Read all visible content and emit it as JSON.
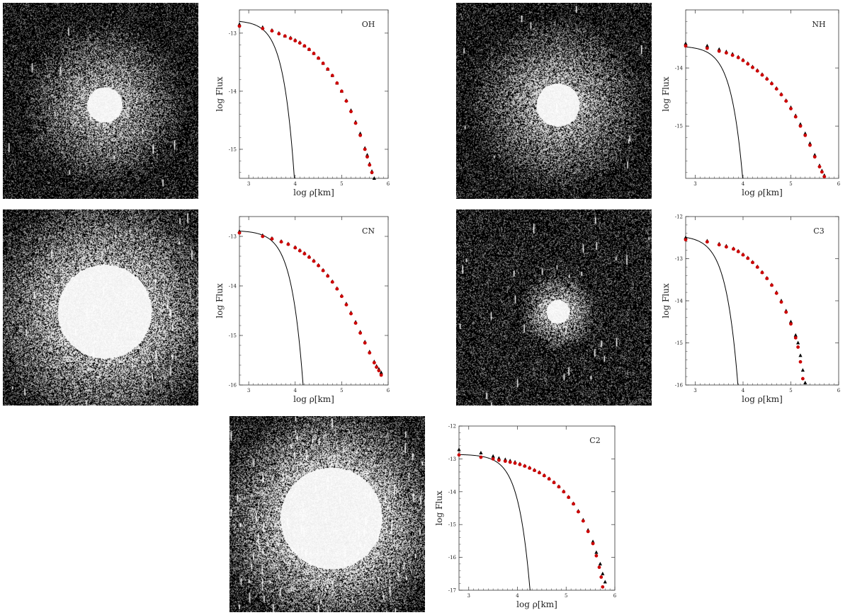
{
  "figure": {
    "xlabel": "log ρ[km]",
    "ylabel": "log Flux"
  },
  "images": [
    {
      "name": "oh",
      "core_radius": 0.09,
      "halo_radius": 0.42,
      "density": 0.45,
      "streaks": 0.02
    },
    {
      "name": "nh",
      "core_radius": 0.11,
      "halo_radius": 0.45,
      "density": 0.45,
      "streaks": 0.02
    },
    {
      "name": "cn",
      "core_radius": 0.24,
      "halo_radius": 0.62,
      "density": 0.5,
      "streaks": 0.06
    },
    {
      "name": "c3",
      "core_radius": 0.06,
      "halo_radius": 0.2,
      "density": 0.5,
      "streaks": 0.05
    },
    {
      "name": "c2",
      "core_radius": 0.26,
      "halo_radius": 0.58,
      "density": 0.55,
      "streaks": 0.18
    }
  ],
  "chart_data": [
    {
      "type": "scatter",
      "label": "OH",
      "xlim": [
        2.8,
        6
      ],
      "ylim": [
        -15.5,
        -12.6
      ],
      "xticks": [
        3,
        4,
        5,
        6
      ],
      "yticks": [
        -13,
        -14,
        -15
      ],
      "model": {
        "a": -12.78,
        "b": 0.044,
        "c": 4.2
      },
      "series": [
        {
          "marker": "triangle",
          "color": "#000000",
          "x": [
            2.8,
            3.3,
            3.5,
            3.65,
            3.78,
            3.9,
            4.0,
            4.1,
            4.2,
            4.3,
            4.4,
            4.5,
            4.6,
            4.7,
            4.8,
            4.9,
            5.0,
            5.1,
            5.2,
            5.3,
            5.4,
            5.5,
            5.55,
            5.6,
            5.65,
            5.7
          ],
          "y": [
            -12.85,
            -12.9,
            -12.95,
            -13.0,
            -13.05,
            -13.08,
            -13.12,
            -13.16,
            -13.22,
            -13.28,
            -13.35,
            -13.43,
            -13.52,
            -13.62,
            -13.73,
            -13.86,
            -14.0,
            -14.16,
            -14.33,
            -14.53,
            -14.73,
            -14.98,
            -15.1,
            -15.25,
            -15.38,
            -15.5
          ]
        },
        {
          "marker": "circle",
          "color": "#cc0000",
          "x": [
            2.8,
            3.3,
            3.5,
            3.65,
            3.78,
            3.9,
            4.0,
            4.1,
            4.2,
            4.3,
            4.4,
            4.5,
            4.6,
            4.7,
            4.8,
            4.9,
            5.0,
            5.1,
            5.2,
            5.3,
            5.4,
            5.5,
            5.55,
            5.6,
            5.65,
            5.7
          ],
          "y": [
            -12.88,
            -12.92,
            -12.96,
            -13.01,
            -13.05,
            -13.09,
            -13.13,
            -13.17,
            -13.22,
            -13.28,
            -13.35,
            -13.43,
            -13.52,
            -13.62,
            -13.73,
            -13.86,
            -14.0,
            -14.17,
            -14.35,
            -14.55,
            -14.76,
            -15.0,
            -15.13,
            -15.27,
            -15.4,
            -15.52
          ]
        }
      ]
    },
    {
      "type": "scatter",
      "label": "NH",
      "xlim": [
        2.8,
        6
      ],
      "ylim": [
        -15.9,
        -13.0
      ],
      "xticks": [
        3,
        4,
        5,
        6
      ],
      "yticks": [
        -14,
        -15
      ],
      "model": {
        "a": -13.62,
        "b": 0.039,
        "c": 4.1
      },
      "series": [
        {
          "marker": "triangle",
          "color": "#000000",
          "x": [
            2.8,
            3.25,
            3.5,
            3.65,
            3.78,
            3.9,
            4.0,
            4.1,
            4.2,
            4.3,
            4.4,
            4.5,
            4.6,
            4.7,
            4.8,
            4.9,
            5.0,
            5.1,
            5.2,
            5.3,
            5.4,
            5.5,
            5.6,
            5.65,
            5.7
          ],
          "y": [
            -13.58,
            -13.62,
            -13.68,
            -13.72,
            -13.76,
            -13.81,
            -13.86,
            -13.92,
            -13.98,
            -14.04,
            -14.11,
            -14.18,
            -14.26,
            -14.35,
            -14.45,
            -14.56,
            -14.68,
            -14.82,
            -14.97,
            -15.13,
            -15.3,
            -15.5,
            -15.68,
            -15.77,
            -15.85
          ]
        },
        {
          "marker": "circle",
          "color": "#cc0000",
          "x": [
            2.8,
            3.25,
            3.5,
            3.65,
            3.78,
            3.9,
            4.0,
            4.1,
            4.2,
            4.3,
            4.4,
            4.5,
            4.6,
            4.7,
            4.8,
            4.9,
            5.0,
            5.1,
            5.2,
            5.3,
            5.4,
            5.5,
            5.6,
            5.65,
            5.7
          ],
          "y": [
            -13.62,
            -13.66,
            -13.71,
            -13.74,
            -13.78,
            -13.82,
            -13.87,
            -13.93,
            -13.99,
            -14.05,
            -14.12,
            -14.19,
            -14.27,
            -14.36,
            -14.46,
            -14.57,
            -14.7,
            -14.84,
            -15.0,
            -15.16,
            -15.33,
            -15.53,
            -15.7,
            -15.79,
            -15.87
          ]
        }
      ]
    },
    {
      "type": "scatter",
      "label": "CN",
      "xlim": [
        2.8,
        6
      ],
      "ylim": [
        -16.0,
        -12.6
      ],
      "xticks": [
        3,
        4,
        5,
        6
      ],
      "yticks": [
        -13,
        -14,
        -15,
        -16
      ],
      "model": {
        "a": -12.88,
        "b": 0.029,
        "c": 4.0
      },
      "series": [
        {
          "marker": "triangle",
          "color": "#000000",
          "x": [
            2.8,
            3.3,
            3.5,
            3.7,
            3.85,
            4.0,
            4.1,
            4.2,
            4.3,
            4.4,
            4.5,
            4.6,
            4.7,
            4.8,
            4.9,
            5.0,
            5.1,
            5.2,
            5.3,
            5.4,
            5.5,
            5.6,
            5.7,
            5.75,
            5.8,
            5.85
          ],
          "y": [
            -12.9,
            -12.98,
            -13.04,
            -13.1,
            -13.15,
            -13.22,
            -13.28,
            -13.34,
            -13.41,
            -13.49,
            -13.58,
            -13.68,
            -13.79,
            -13.91,
            -14.05,
            -14.2,
            -14.36,
            -14.54,
            -14.73,
            -14.93,
            -15.13,
            -15.33,
            -15.53,
            -15.62,
            -15.68,
            -15.75
          ]
        },
        {
          "marker": "circle",
          "color": "#cc0000",
          "x": [
            2.8,
            3.3,
            3.5,
            3.7,
            3.85,
            4.0,
            4.1,
            4.2,
            4.3,
            4.4,
            4.5,
            4.6,
            4.7,
            4.8,
            4.9,
            5.0,
            5.1,
            5.2,
            5.3,
            5.4,
            5.5,
            5.6,
            5.7,
            5.75,
            5.8,
            5.85
          ],
          "y": [
            -12.93,
            -13.0,
            -13.05,
            -13.11,
            -13.16,
            -13.23,
            -13.29,
            -13.35,
            -13.42,
            -13.5,
            -13.59,
            -13.69,
            -13.8,
            -13.92,
            -14.06,
            -14.21,
            -14.38,
            -14.56,
            -14.75,
            -14.95,
            -15.15,
            -15.35,
            -15.55,
            -15.64,
            -15.71,
            -15.8
          ]
        }
      ]
    },
    {
      "type": "scatter",
      "label": "C3",
      "xlim": [
        2.8,
        6
      ],
      "ylim": [
        -16.0,
        -12.0
      ],
      "xticks": [
        3,
        4,
        5,
        6
      ],
      "yticks": [
        -12,
        -13,
        -14,
        -15,
        -16
      ],
      "model": {
        "a": -12.45,
        "b": 0.1,
        "c": 4.0
      },
      "series": [
        {
          "marker": "triangle",
          "color": "#000000",
          "x": [
            2.8,
            3.25,
            3.5,
            3.65,
            3.8,
            3.9,
            4.0,
            4.1,
            4.2,
            4.3,
            4.4,
            4.5,
            4.6,
            4.7,
            4.8,
            4.9,
            5.0,
            5.1,
            5.15,
            5.2,
            5.25,
            5.3
          ],
          "y": [
            -12.5,
            -12.58,
            -12.65,
            -12.7,
            -12.76,
            -12.82,
            -12.9,
            -12.98,
            -13.08,
            -13.19,
            -13.32,
            -13.46,
            -13.62,
            -13.8,
            -14.0,
            -14.24,
            -14.5,
            -14.82,
            -15.0,
            -15.3,
            -15.65,
            -15.95
          ]
        },
        {
          "marker": "circle",
          "color": "#cc0000",
          "x": [
            2.8,
            3.25,
            3.5,
            3.65,
            3.8,
            3.9,
            4.0,
            4.1,
            4.2,
            4.3,
            4.4,
            4.5,
            4.6,
            4.7,
            4.8,
            4.9,
            5.0,
            5.1,
            5.15,
            5.2,
            5.25
          ],
          "y": [
            -12.55,
            -12.6,
            -12.67,
            -12.72,
            -12.77,
            -12.83,
            -12.91,
            -12.99,
            -13.09,
            -13.2,
            -13.33,
            -13.47,
            -13.63,
            -13.82,
            -14.03,
            -14.27,
            -14.55,
            -14.88,
            -15.1,
            -15.45,
            -15.85
          ]
        }
      ]
    },
    {
      "type": "scatter",
      "label": "C2",
      "xlim": [
        2.8,
        6
      ],
      "ylim": [
        -17.0,
        -12.0
      ],
      "xticks": [
        3,
        4,
        5,
        6
      ],
      "yticks": [
        -12,
        -13,
        -14,
        -15,
        -16,
        -17
      ],
      "model": {
        "a": -12.86,
        "b": 0.021,
        "c": 4.2
      },
      "series": [
        {
          "marker": "triangle",
          "color": "#000000",
          "x": [
            2.8,
            3.25,
            3.5,
            3.62,
            3.75,
            3.85,
            3.95,
            4.05,
            4.15,
            4.25,
            4.35,
            4.45,
            4.55,
            4.65,
            4.75,
            4.85,
            4.95,
            5.05,
            5.15,
            5.25,
            5.35,
            5.45,
            5.55,
            5.62,
            5.7,
            5.75,
            5.8
          ],
          "y": [
            -12.72,
            -12.82,
            -12.92,
            -12.98,
            -13.02,
            -13.06,
            -13.1,
            -13.15,
            -13.21,
            -13.27,
            -13.34,
            -13.41,
            -13.5,
            -13.6,
            -13.71,
            -13.84,
            -13.99,
            -14.16,
            -14.36,
            -14.59,
            -14.86,
            -15.17,
            -15.52,
            -15.85,
            -16.2,
            -16.5,
            -16.75
          ]
        },
        {
          "marker": "circle",
          "color": "#cc0000",
          "x": [
            2.8,
            3.25,
            3.5,
            3.62,
            3.75,
            3.85,
            3.95,
            4.05,
            4.15,
            4.25,
            4.35,
            4.45,
            4.55,
            4.65,
            4.75,
            4.85,
            4.95,
            5.05,
            5.15,
            5.25,
            5.35,
            5.45,
            5.55,
            5.62,
            5.68,
            5.72,
            5.75
          ],
          "y": [
            -12.88,
            -12.95,
            -13.0,
            -13.04,
            -13.07,
            -13.1,
            -13.13,
            -13.17,
            -13.22,
            -13.28,
            -13.35,
            -13.42,
            -13.51,
            -13.61,
            -13.72,
            -13.85,
            -14.0,
            -14.17,
            -14.37,
            -14.61,
            -14.89,
            -15.21,
            -15.58,
            -15.95,
            -16.3,
            -16.6,
            -16.9
          ]
        }
      ]
    }
  ]
}
